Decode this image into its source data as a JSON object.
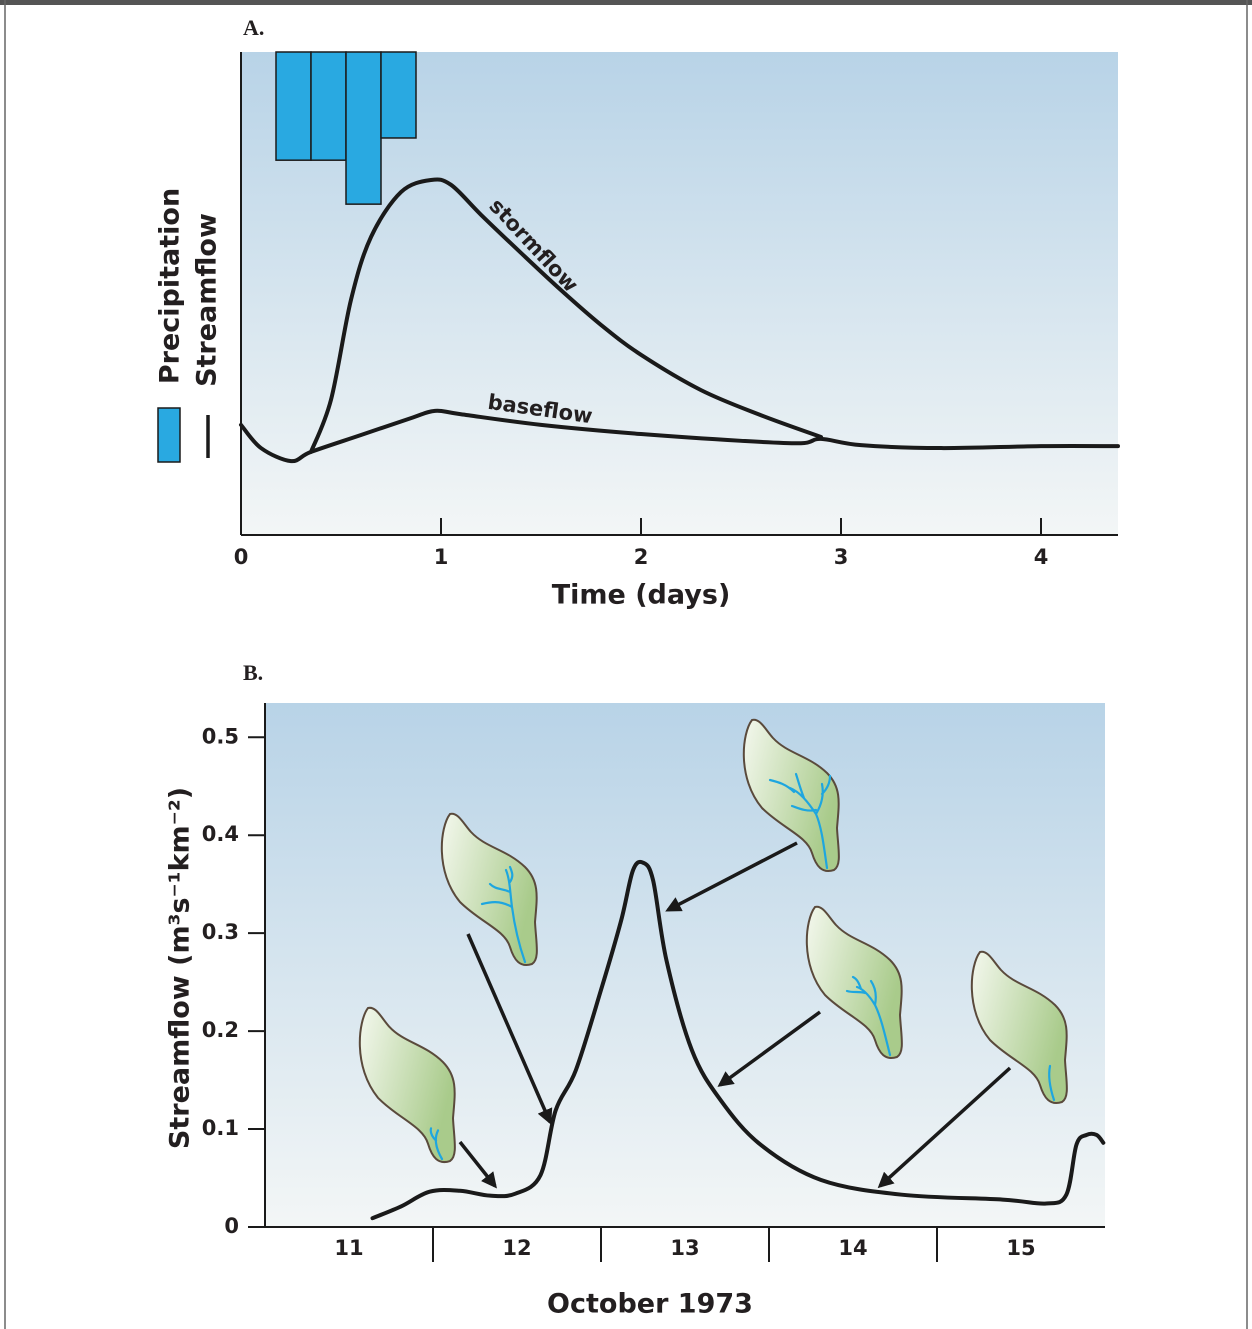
{
  "chart_data": [
    {
      "type": "line",
      "title": "A.",
      "x_label": "Time (days)",
      "y_label": "Streamflow",
      "xlim": [
        0,
        4.385
      ],
      "xticks": [
        0,
        1,
        2,
        3,
        4
      ],
      "ylim": [
        0,
        1
      ],
      "precipitation": {
        "name": "Precipitation",
        "color": "#29a9e1",
        "bins": [
          0.175,
          0.35,
          0.525,
          0.7,
          0.875
        ],
        "values": [
          0.224,
          0.224,
          0.315,
          0.178
        ]
      },
      "series": [
        {
          "name": "stormflow",
          "color": "#1a1a1a",
          "x": [
            0.35,
            0.45,
            0.55,
            0.65,
            0.8,
            0.95,
            1.05,
            1.2,
            1.4,
            1.6,
            1.8,
            2.0,
            2.3,
            2.6,
            2.9
          ],
          "values": [
            0.172,
            0.28,
            0.487,
            0.617,
            0.71,
            0.735,
            0.725,
            0.663,
            0.584,
            0.507,
            0.435,
            0.373,
            0.3,
            0.248,
            0.203
          ]
        },
        {
          "name": "baseflow",
          "color": "#1a1a1a",
          "x": [
            0,
            0.1,
            0.25,
            0.35,
            0.6,
            0.85,
            0.97,
            1.1,
            1.5,
            2.0,
            2.5,
            2.8,
            2.9,
            3.1,
            3.5,
            4.0,
            4.385
          ],
          "values": [
            0.228,
            0.18,
            0.153,
            0.172,
            0.207,
            0.242,
            0.257,
            0.25,
            0.228,
            0.209,
            0.195,
            0.19,
            0.199,
            0.186,
            0.18,
            0.184,
            0.184
          ]
        }
      ]
    },
    {
      "type": "line",
      "title": "B.",
      "x_label": "October 1973",
      "y_label": "Streamflow (m³s⁻¹km⁻²)",
      "categories": [
        "11",
        "12",
        "13",
        "14",
        "15"
      ],
      "xlim": [
        11,
        16
      ],
      "ylim": [
        0,
        0.535
      ],
      "yticks": [
        0,
        0.1,
        0.2,
        0.3,
        0.4,
        0.5
      ],
      "series": [
        {
          "color": "#1a1a1a",
          "x": [
            11.64,
            11.81,
            11.98,
            12.16,
            12.34,
            12.49,
            12.64,
            12.73,
            12.85,
            13.0,
            13.12,
            13.19,
            13.25,
            13.31,
            13.39,
            13.54,
            13.71,
            13.95,
            14.31,
            14.79,
            15.39,
            15.65,
            15.77,
            15.83,
            15.89,
            15.95,
            15.99
          ],
          "values": [
            0.009,
            0.021,
            0.036,
            0.037,
            0.032,
            0.034,
            0.053,
            0.119,
            0.16,
            0.242,
            0.313,
            0.364,
            0.372,
            0.354,
            0.272,
            0.181,
            0.13,
            0.084,
            0.048,
            0.033,
            0.028,
            0.024,
            0.033,
            0.084,
            0.094,
            0.094,
            0.086
          ]
        }
      ]
    }
  ]
}
